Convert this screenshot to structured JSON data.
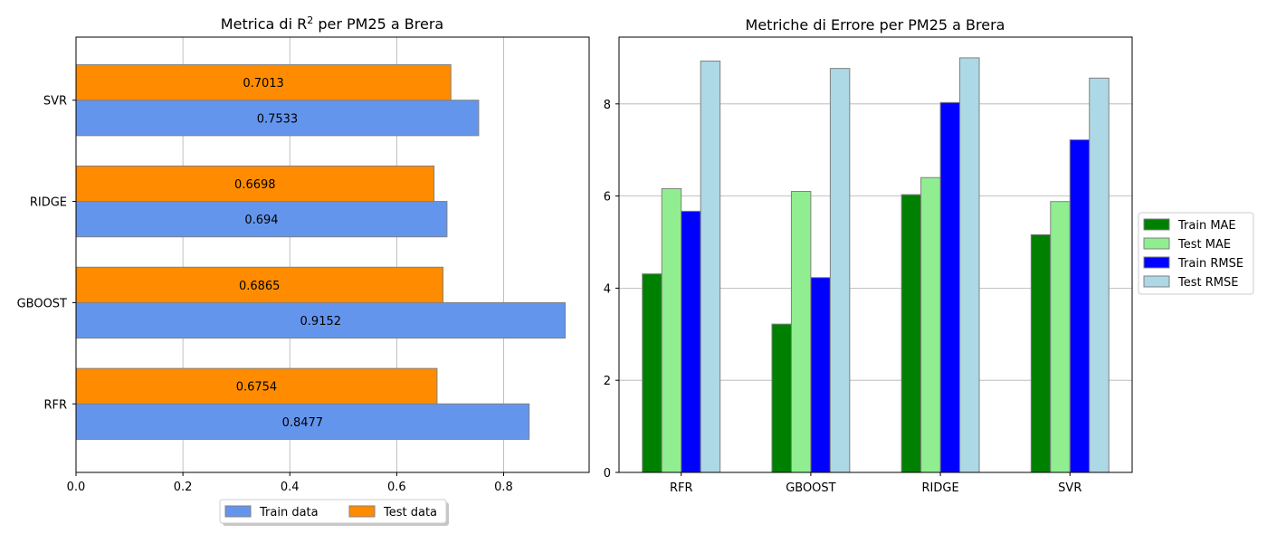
{
  "chart_data": [
    {
      "type": "bar",
      "orientation": "horizontal",
      "title": "Metrica di R² per PM25 a Brera",
      "categories": [
        "RFR",
        "GBOOST",
        "RIDGE",
        "SVR"
      ],
      "series": [
        {
          "name": "Train data",
          "values": [
            0.8477,
            0.9152,
            0.694,
            0.7533
          ],
          "color": "#6495ED"
        },
        {
          "name": "Test data",
          "values": [
            0.6754,
            0.6865,
            0.6698,
            0.7013
          ],
          "color": "#FF8C00"
        }
      ],
      "value_labels": {
        "Train data": [
          "0.8477",
          "0.9152",
          "0.694",
          "0.7533"
        ],
        "Test data": [
          "0.6754",
          "0.6865",
          "0.6698",
          "0.7013"
        ]
      },
      "xlim": [
        0,
        0.96
      ],
      "xticks": [
        "0.0",
        "0.2",
        "0.4",
        "0.6",
        "0.8"
      ],
      "xlabel": "",
      "ylabel": "",
      "grid": "x",
      "legend_position": "bottom-center"
    },
    {
      "type": "bar",
      "title": "Metriche di Errore per PM25 a Brera",
      "categories": [
        "RFR",
        "GBOOST",
        "RIDGE",
        "SVR"
      ],
      "series": [
        {
          "name": "Train MAE",
          "values": [
            4.31,
            3.22,
            6.03,
            5.16
          ],
          "color": "#008000"
        },
        {
          "name": "Test MAE",
          "values": [
            6.16,
            6.1,
            6.4,
            5.88
          ],
          "color": "#90EE90"
        },
        {
          "name": "Train RMSE",
          "values": [
            5.67,
            4.23,
            8.03,
            7.22
          ],
          "color": "#0000FF"
        },
        {
          "name": "Test RMSE",
          "values": [
            8.93,
            8.77,
            9.0,
            8.56
          ],
          "color": "#ADD8E6"
        }
      ],
      "ylim": [
        0,
        9.45
      ],
      "yticks": [
        "0",
        "2",
        "4",
        "6",
        "8"
      ],
      "xlabel": "",
      "ylabel": "",
      "grid": "y",
      "legend_position": "right"
    }
  ]
}
